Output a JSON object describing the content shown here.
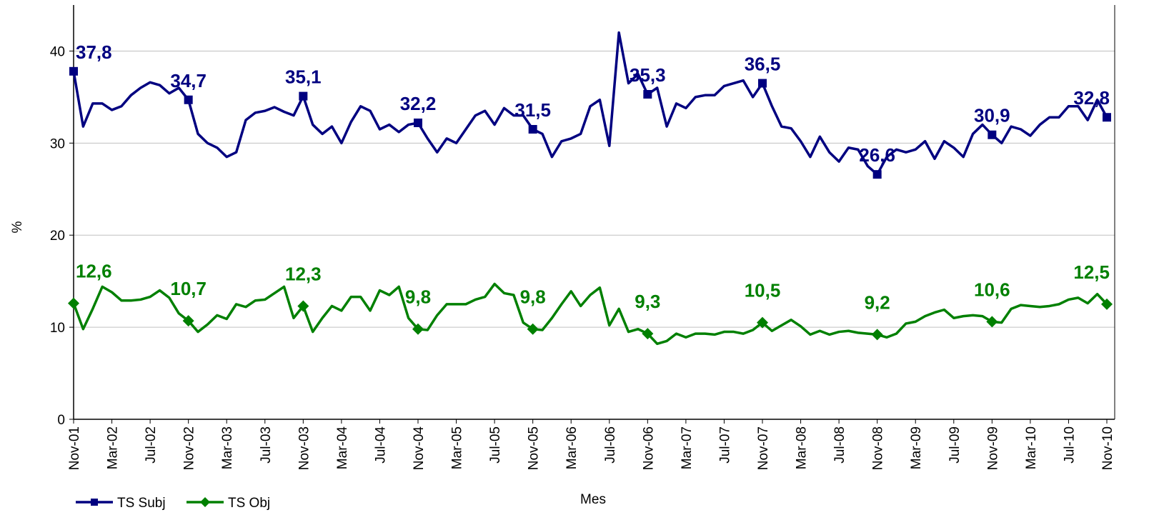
{
  "chart_data": {
    "type": "line",
    "ylabel": "%",
    "xlabel": "Mes",
    "ylim": [
      0,
      45
    ],
    "yticks": [
      0,
      10,
      20,
      30,
      40
    ],
    "grid": true,
    "legend": "bottom-left",
    "categories": [
      "Nov-01",
      null,
      null,
      null,
      "Mar-02",
      null,
      null,
      null,
      "Jul-02",
      null,
      null,
      null,
      "Nov-02",
      null,
      null,
      null,
      "Mar-03",
      null,
      null,
      null,
      "Jul-03",
      null,
      null,
      null,
      "Nov-03",
      null,
      null,
      null,
      "Mar-04",
      null,
      null,
      null,
      "Jul-04",
      null,
      null,
      null,
      "Nov-04",
      null,
      null,
      null,
      "Mar-05",
      null,
      null,
      null,
      "Jul-05",
      null,
      null,
      null,
      "Nov-05",
      null,
      null,
      null,
      "Mar-06",
      null,
      null,
      null,
      "Jul-06",
      null,
      null,
      null,
      "Nov-06",
      null,
      null,
      null,
      "Mar-07",
      null,
      null,
      null,
      "Jul-07",
      null,
      null,
      null,
      "Nov-07",
      null,
      null,
      null,
      "Mar-08",
      null,
      null,
      null,
      "Jul-08",
      null,
      null,
      null,
      "Nov-08",
      null,
      null,
      null,
      "Mar-09",
      null,
      null,
      null,
      "Jul-09",
      null,
      null,
      null,
      "Nov-09",
      null,
      null,
      null,
      "Mar-10",
      null,
      null,
      null,
      "Jul-10",
      null,
      null,
      null,
      "Nov-10"
    ],
    "series": [
      {
        "name": "TS Subj",
        "color": "#000080",
        "marker": "square",
        "values": [
          37.8,
          31.8,
          34.3,
          34.3,
          33.6,
          34,
          35.2,
          36,
          36.6,
          36.3,
          35.4,
          36,
          34.7,
          31,
          30,
          29.5,
          28.5,
          29,
          32.5,
          33.3,
          33.5,
          33.9,
          33.4,
          33,
          35.1,
          32,
          31,
          31.8,
          30,
          32.3,
          34,
          33.5,
          31.5,
          32,
          31.2,
          32,
          32.2,
          30.5,
          29,
          30.5,
          30,
          31.5,
          33,
          33.5,
          32,
          33.8,
          33,
          33,
          31.5,
          31,
          28.5,
          30.2,
          30.5,
          31,
          34,
          34.7,
          29.7,
          42,
          36.5,
          37.5,
          35.3,
          36,
          31.8,
          34.3,
          33.8,
          35,
          35.2,
          35.2,
          36.2,
          36.5,
          36.8,
          35,
          36.5,
          34,
          31.8,
          31.6,
          30.2,
          28.5,
          30.7,
          29,
          28,
          29.5,
          29.3,
          27.5,
          26.6,
          28.5,
          29.3,
          29,
          29.3,
          30.2,
          28.3,
          30.2,
          29.5,
          28.5,
          31,
          32,
          30.9,
          30,
          31.8,
          31.5,
          30.8,
          32,
          32.8,
          32.8,
          34,
          34,
          32.5,
          34.7,
          32.8
        ],
        "value_labels": [
          "37,8",
          null,
          null,
          null,
          null,
          null,
          null,
          null,
          null,
          null,
          null,
          null,
          "34,7",
          null,
          null,
          null,
          null,
          null,
          null,
          null,
          null,
          null,
          null,
          null,
          "35,1",
          null,
          null,
          null,
          null,
          null,
          null,
          null,
          null,
          null,
          null,
          null,
          "32,2",
          null,
          null,
          null,
          null,
          null,
          null,
          null,
          null,
          null,
          null,
          null,
          "31,5",
          null,
          null,
          null,
          null,
          null,
          null,
          null,
          null,
          null,
          null,
          null,
          "35,3",
          null,
          null,
          null,
          null,
          null,
          null,
          null,
          null,
          null,
          null,
          null,
          "36,5",
          null,
          null,
          null,
          null,
          null,
          null,
          null,
          null,
          null,
          null,
          null,
          "26,6",
          null,
          null,
          null,
          null,
          null,
          null,
          null,
          null,
          null,
          null,
          null,
          "30,9",
          null,
          null,
          null,
          null,
          null,
          null,
          null,
          null,
          null,
          null,
          null,
          "32,8"
        ]
      },
      {
        "name": "TS Obj",
        "color": "#008000",
        "marker": "diamond",
        "values": [
          12.6,
          9.8,
          12,
          14.4,
          13.8,
          12.9,
          12.9,
          13,
          13.3,
          14,
          13.2,
          11.5,
          10.7,
          9.5,
          10.3,
          11.3,
          10.9,
          12.5,
          12.2,
          12.9,
          13,
          13.7,
          14.4,
          11,
          12.3,
          9.5,
          11,
          12.3,
          11.8,
          13.3,
          13.3,
          11.8,
          14,
          13.5,
          14.4,
          11,
          9.8,
          9.7,
          11.3,
          12.5,
          12.5,
          12.5,
          13,
          13.3,
          14.7,
          13.7,
          13.5,
          10.5,
          9.8,
          9.7,
          11,
          12.5,
          13.9,
          12.3,
          13.5,
          14.3,
          10.2,
          12,
          9.5,
          9.8,
          9.3,
          8.2,
          8.5,
          9.3,
          8.9,
          9.3,
          9.3,
          9.2,
          9.5,
          9.5,
          9.3,
          9.7,
          10.5,
          9.6,
          10.2,
          10.8,
          10.1,
          9.2,
          9.6,
          9.2,
          9.5,
          9.6,
          9.4,
          9.3,
          9.2,
          8.9,
          9.3,
          10.4,
          10.6,
          11.2,
          11.6,
          11.9,
          11,
          11.2,
          11.3,
          11.2,
          10.6,
          10.5,
          12,
          12.4,
          12.3,
          12.2,
          12.3,
          12.5,
          13,
          13.2,
          12.6,
          13.6,
          12.5
        ],
        "value_labels": [
          "12,6",
          null,
          null,
          null,
          null,
          null,
          null,
          null,
          null,
          null,
          null,
          null,
          "10,7",
          null,
          null,
          null,
          null,
          null,
          null,
          null,
          null,
          null,
          null,
          null,
          "12,3",
          null,
          null,
          null,
          null,
          null,
          null,
          null,
          null,
          null,
          null,
          null,
          "9,8",
          null,
          null,
          null,
          null,
          null,
          null,
          null,
          null,
          null,
          null,
          null,
          "9,8",
          null,
          null,
          null,
          null,
          null,
          null,
          null,
          null,
          null,
          null,
          null,
          "9,3",
          null,
          null,
          null,
          null,
          null,
          null,
          null,
          null,
          null,
          null,
          null,
          "10,5",
          null,
          null,
          null,
          null,
          null,
          null,
          null,
          null,
          null,
          null,
          null,
          "9,2",
          null,
          null,
          null,
          null,
          null,
          null,
          null,
          null,
          null,
          null,
          null,
          "10,6",
          null,
          null,
          null,
          null,
          null,
          null,
          null,
          null,
          null,
          null,
          null,
          "12,5"
        ]
      }
    ]
  }
}
